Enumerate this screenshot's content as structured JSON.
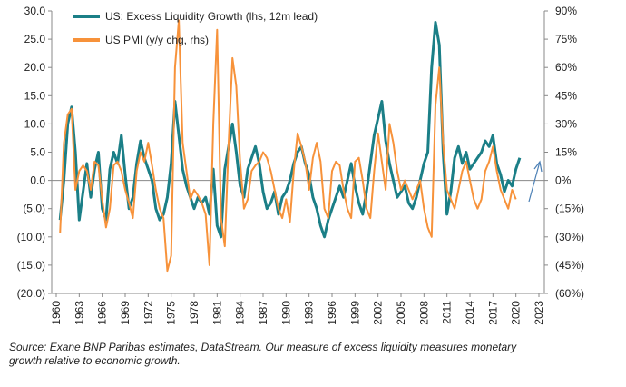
{
  "chart_data": {
    "type": "line",
    "series": [
      {
        "name": "US: Excess Liquidity Growth (lhs, 12m lead)",
        "color": "#1b7f87",
        "x": [
          1960.5,
          1961,
          1961.5,
          1962,
          1962.5,
          1963,
          1963.5,
          1964,
          1964.5,
          1965,
          1965.5,
          1966,
          1966.5,
          1967,
          1967.5,
          1968,
          1968.5,
          1969,
          1969.5,
          1970,
          1970.5,
          1971,
          1971.5,
          1972,
          1972.5,
          1973,
          1973.5,
          1974,
          1974.5,
          1975,
          1975.5,
          1976,
          1976.5,
          1977,
          1977.5,
          1978,
          1978.5,
          1979,
          1979.5,
          1980,
          1980.5,
          1981,
          1981.5,
          1982,
          1982.5,
          1983,
          1983.5,
          1984,
          1984.5,
          1985,
          1985.5,
          1986,
          1986.5,
          1987,
          1987.5,
          1988,
          1988.5,
          1989,
          1989.5,
          1990,
          1990.5,
          1991,
          1991.5,
          1992,
          1992.5,
          1993,
          1993.5,
          1994,
          1994.5,
          1995,
          1995.5,
          1996,
          1996.5,
          1997,
          1997.5,
          1998,
          1998.5,
          1999,
          1999.5,
          2000,
          2000.5,
          2001,
          2001.5,
          2002,
          2002.5,
          2003,
          2003.5,
          2004,
          2004.5,
          2005,
          2005.5,
          2006,
          2006.5,
          2007,
          2007.5,
          2008,
          2008.5,
          2009,
          2009.5,
          2010,
          2010.5,
          2011,
          2011.5,
          2012,
          2012.5,
          2013,
          2013.5,
          2014,
          2014.5,
          2015,
          2015.5,
          2016,
          2016.5,
          2017,
          2017.5,
          2018,
          2018.5,
          2019,
          2019.5,
          2020,
          2020.5
        ],
        "values": [
          -7,
          0,
          10,
          13,
          5,
          -7,
          -2,
          3,
          -3,
          2,
          5,
          -5,
          -7,
          2,
          5,
          3,
          8,
          1,
          -5,
          -3,
          3,
          7,
          4,
          2,
          0,
          -5,
          -7,
          -6,
          -3,
          3,
          14,
          8,
          2,
          -1,
          -3,
          -5,
          -3,
          -4,
          -3,
          -6,
          2,
          -8,
          -10,
          2,
          6,
          10,
          5,
          -1,
          -3,
          2,
          4,
          6,
          3,
          -2,
          -5,
          -4,
          -2,
          -6,
          -3,
          -2,
          0,
          3,
          5,
          6,
          3,
          1,
          -3,
          -5,
          -8,
          -10,
          -7,
          -5,
          -3,
          -1,
          -3,
          0,
          3,
          -1,
          -4,
          -6,
          -2,
          3,
          8,
          11,
          14,
          7,
          3,
          0,
          -3,
          -2,
          -1,
          -4,
          -5,
          -3,
          0,
          3,
          5,
          20,
          28,
          24,
          5,
          -6,
          -2,
          4,
          6,
          3,
          5,
          2,
          3,
          4,
          5,
          7,
          6,
          8,
          3,
          1,
          -2,
          0,
          -1,
          2,
          4
        ]
      },
      {
        "name": "US PMI  (y/y chg, rhs)",
        "color": "#f7923a",
        "axis": "y2",
        "x": [
          1960.5,
          1961,
          1961.5,
          1962,
          1962.5,
          1963,
          1963.5,
          1964,
          1964.5,
          1965,
          1965.5,
          1966,
          1966.5,
          1967,
          1967.5,
          1968,
          1968.5,
          1969,
          1969.5,
          1970,
          1970.5,
          1971,
          1971.5,
          1972,
          1972.5,
          1973,
          1973.5,
          1974,
          1974.5,
          1975,
          1975.5,
          1976,
          1976.5,
          1977,
          1977.5,
          1978,
          1978.5,
          1979,
          1979.5,
          1980,
          1980.5,
          1981,
          1981.5,
          1982,
          1982.5,
          1983,
          1983.5,
          1984,
          1984.5,
          1985,
          1985.5,
          1986,
          1986.5,
          1987,
          1987.5,
          1988,
          1988.5,
          1989,
          1989.5,
          1990,
          1990.5,
          1991,
          1991.5,
          1992,
          1992.5,
          1993,
          1993.5,
          1994,
          1994.5,
          1995,
          1995.5,
          1996,
          1996.5,
          1997,
          1997.5,
          1998,
          1998.5,
          1999,
          1999.5,
          2000,
          2000.5,
          2001,
          2001.5,
          2002,
          2002.5,
          2003,
          2003.5,
          2004,
          2004.5,
          2005,
          2005.5,
          2006,
          2006.5,
          2007,
          2007.5,
          2008,
          2008.5,
          2009,
          2009.5,
          2010,
          2010.5,
          2011,
          2011.5,
          2012,
          2012.5,
          2013,
          2013.5,
          2014,
          2014.5,
          2015,
          2015.5,
          2016,
          2016.5,
          2017,
          2017.5,
          2018,
          2018.5,
          2019,
          2019.5,
          2020
        ],
        "values": [
          -28,
          20,
          35,
          38,
          -5,
          5,
          8,
          5,
          -5,
          10,
          8,
          -10,
          -25,
          -15,
          8,
          10,
          5,
          -5,
          -12,
          -20,
          5,
          15,
          10,
          20,
          8,
          -5,
          -15,
          -20,
          -48,
          -40,
          60,
          85,
          20,
          5,
          -10,
          -5,
          -8,
          -12,
          -18,
          -45,
          30,
          80,
          -20,
          -35,
          20,
          65,
          50,
          10,
          -15,
          -10,
          5,
          8,
          10,
          15,
          12,
          5,
          -5,
          -15,
          -20,
          -10,
          -22,
          5,
          25,
          18,
          10,
          -5,
          12,
          20,
          10,
          -15,
          -20,
          5,
          10,
          8,
          -5,
          -15,
          -20,
          10,
          12,
          0,
          -15,
          -20,
          5,
          25,
          10,
          -5,
          30,
          20,
          5,
          -5,
          0,
          -5,
          -10,
          -5,
          0,
          -15,
          -25,
          -30,
          40,
          60,
          20,
          -5,
          -10,
          -15,
          -5,
          5,
          10,
          0,
          -10,
          -15,
          -10,
          5,
          10,
          18,
          5,
          -5,
          -10,
          -15,
          -5,
          -10
        ]
      }
    ],
    "xlim": [
      1960,
      2023
    ],
    "xticks": [
      1960,
      1963,
      1966,
      1969,
      1972,
      1975,
      1978,
      1981,
      1984,
      1987,
      1990,
      1993,
      1996,
      1999,
      2002,
      2005,
      2008,
      2011,
      2014,
      2017,
      2020,
      2023
    ],
    "ylim": [
      -20,
      30
    ],
    "yticks": [
      {
        "value": 30,
        "label": "30.0"
      },
      {
        "value": 25,
        "label": "25.0"
      },
      {
        "value": 20,
        "label": "20.0"
      },
      {
        "value": 15,
        "label": "15.0"
      },
      {
        "value": 10,
        "label": "10.0"
      },
      {
        "value": 5,
        "label": "5.0"
      },
      {
        "value": 0,
        "label": "0.0"
      },
      {
        "value": -5,
        "label": "(5.0)"
      },
      {
        "value": -10,
        "label": "(10.0)"
      },
      {
        "value": -15,
        "label": "(15.0)"
      },
      {
        "value": -20,
        "label": "(20.0)"
      }
    ],
    "y2lim": [
      -60,
      90
    ],
    "y2ticks": [
      {
        "value": 90,
        "label": "90%"
      },
      {
        "value": 75,
        "label": "75%"
      },
      {
        "value": 60,
        "label": "60%"
      },
      {
        "value": 45,
        "label": "45%"
      },
      {
        "value": 30,
        "label": "30%"
      },
      {
        "value": 15,
        "label": "15%"
      },
      {
        "value": 0,
        "label": "0%"
      },
      {
        "value": -15,
        "label": "(15%)"
      },
      {
        "value": -30,
        "label": "(30%)"
      },
      {
        "value": -45,
        "label": "(45%)"
      },
      {
        "value": -60,
        "label": "(60%)"
      }
    ],
    "legend": "top-left",
    "note": [
      "Source: Exane BNP Paribas estimates, DataStream. Our measure of excess liquidity measures monetary",
      "growth relative to economic growth."
    ]
  }
}
